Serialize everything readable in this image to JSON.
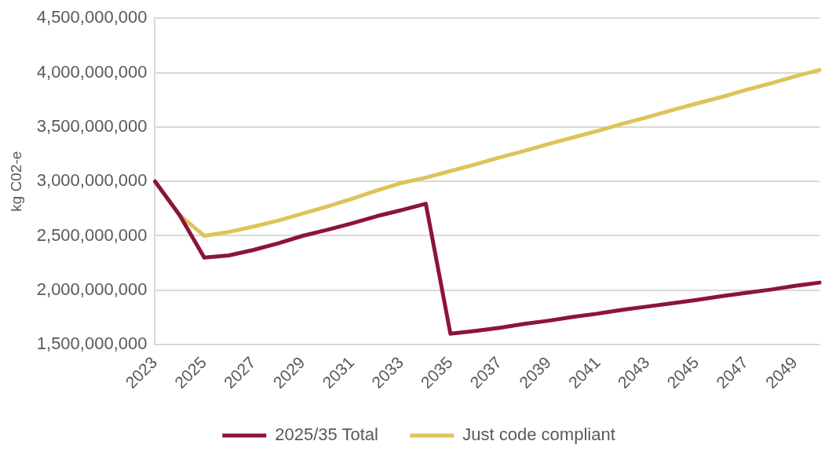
{
  "chart_data": {
    "type": "line",
    "ylabel": "kg C02-e",
    "categories": [
      "2023",
      null,
      "2025",
      null,
      "2027",
      null,
      "2029",
      null,
      "2031",
      null,
      "2033",
      null,
      "2035",
      null,
      "2037",
      null,
      "2039",
      null,
      "2041",
      null,
      "2043",
      null,
      "2045",
      null,
      "2047",
      null,
      "2049",
      null
    ],
    "series": [
      {
        "name": "2025/35 Total",
        "color": "#8b1538",
        "values": [
          3000000000,
          2690000000,
          2300000000,
          2320000000,
          2370000000,
          2430000000,
          2500000000,
          2555000000,
          2615000000,
          2680000000,
          2735000000,
          2795000000,
          1600000000,
          1625000000,
          1655000000,
          1690000000,
          1720000000,
          1755000000,
          1785000000,
          1820000000,
          1850000000,
          1880000000,
          1910000000,
          1945000000,
          1975000000,
          2005000000,
          2040000000,
          2070000000
        ]
      },
      {
        "name": "Just code compliant",
        "color": "#dcc45a",
        "values": [
          3000000000,
          2690000000,
          2500000000,
          2535000000,
          2585000000,
          2640000000,
          2705000000,
          2770000000,
          2840000000,
          2915000000,
          2985000000,
          3035000000,
          3095000000,
          3155000000,
          3220000000,
          3280000000,
          3345000000,
          3405000000,
          3465000000,
          3530000000,
          3590000000,
          3655000000,
          3715000000,
          3775000000,
          3840000000,
          3900000000,
          3965000000,
          4025000000
        ]
      }
    ],
    "ylim": [
      1500000000,
      4500000000
    ],
    "yticks": [
      {
        "value": 1500000000,
        "label": "1,500,000,000"
      },
      {
        "value": 2000000000,
        "label": "2,000,000,000"
      },
      {
        "value": 2500000000,
        "label": "2,500,000,000"
      },
      {
        "value": 3000000000,
        "label": "3,000,000,000"
      },
      {
        "value": 3500000000,
        "label": "3,500,000,000"
      },
      {
        "value": 4000000000,
        "label": "4,000,000,000"
      },
      {
        "value": 4500000000,
        "label": "4,500,000,000"
      }
    ],
    "grid": "y",
    "legend": "bottom",
    "marker": "none",
    "line_style": "solid"
  }
}
